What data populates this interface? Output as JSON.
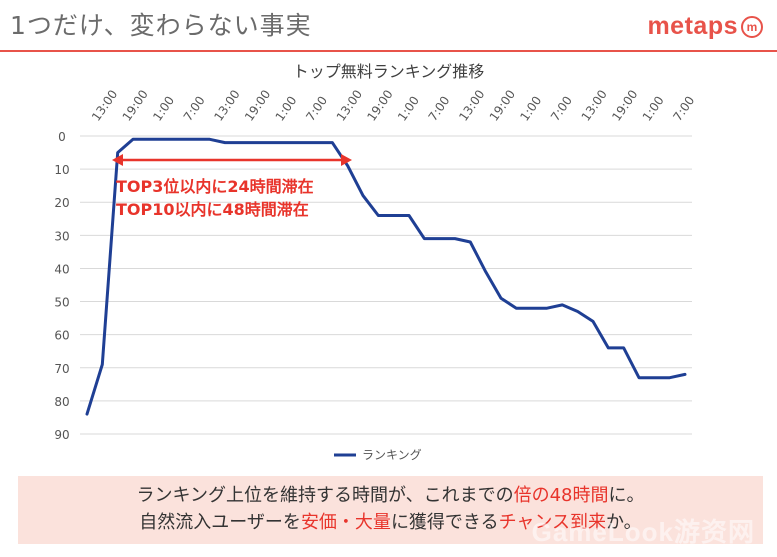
{
  "slide": {
    "title": "1つだけ、変わらない事実",
    "brand_name": "metaps",
    "brand_mark": "m",
    "brand_color": "#e8534a",
    "watermark": "GameLook游资网"
  },
  "chart_data": {
    "type": "line",
    "title": "トップ無料ランキング推移",
    "xlabel": "",
    "ylabel": "",
    "x_tick_labels": [
      "13:00",
      "19:00",
      "1:00",
      "7:00",
      "13:00",
      "19:00",
      "1:00",
      "7:00",
      "13:00",
      "19:00",
      "1:00",
      "7:00",
      "13:00",
      "19:00",
      "1:00",
      "7:00",
      "13:00",
      "19:00",
      "1:00",
      "7:00"
    ],
    "y_ticks": [
      0,
      10,
      20,
      30,
      40,
      50,
      60,
      70,
      80,
      90
    ],
    "ylim": [
      0,
      90
    ],
    "y_inverted": true,
    "grid": "horizontal",
    "legend_position": "bottom",
    "series": [
      {
        "name": "ランキング",
        "color": "#1f3f94",
        "values": [
          84,
          69,
          5,
          1,
          1,
          1,
          1,
          1,
          1,
          2,
          2,
          2,
          2,
          2,
          2,
          2,
          2,
          9,
          18,
          24,
          24,
          24,
          31,
          31,
          31,
          32,
          41,
          49,
          52,
          52,
          52,
          51,
          53,
          56,
          64,
          64,
          73,
          73,
          73,
          72
        ]
      }
    ],
    "annotation": {
      "lines": [
        "TOP3位以内に24時間滞在",
        "TOP10以内に48時間滞在"
      ],
      "color": "#e8342b"
    }
  },
  "callout": {
    "line1": [
      {
        "text": "ランキング上位を維持する時間が、これまでの"
      },
      {
        "text": "倍の48時間",
        "hl": true
      },
      {
        "text": "に。"
      }
    ],
    "line2": [
      {
        "text": "自然流入ユーザーを"
      },
      {
        "text": "安価・大量",
        "hl": true
      },
      {
        "text": "に獲得できる"
      },
      {
        "text": "チャンス到来",
        "hl": true
      },
      {
        "text": "か。"
      }
    ]
  }
}
